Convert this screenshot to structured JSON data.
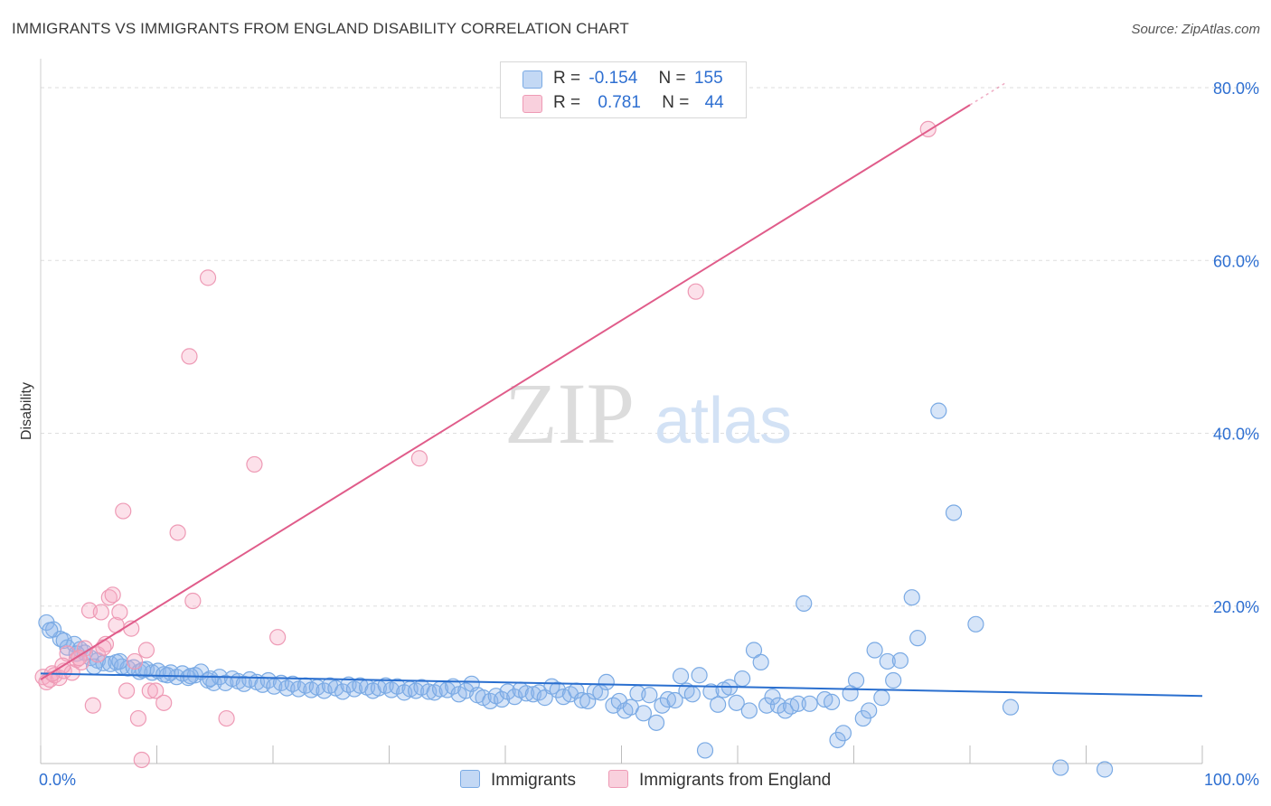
{
  "header": {
    "title": "IMMIGRANTS VS IMMIGRANTS FROM ENGLAND DISABILITY CORRELATION CHART",
    "source": "Source: ZipAtlas.com"
  },
  "watermark": {
    "zip": "ZIP",
    "atlas": "atlas"
  },
  "legend": {
    "rows": [
      {
        "r_label": "R =",
        "r_value": "-0.154",
        "n_label": "N =",
        "n_value": "155",
        "color": "#a9c8f0"
      },
      {
        "r_label": "R =",
        "r_value": "0.781",
        "n_label": "N =",
        "n_value": "44",
        "color": "#f5b8cb"
      }
    ]
  },
  "colors": {
    "blue_fill": "rgba(140,180,235,0.35)",
    "blue_stroke": "#7aaae4",
    "blue_line": "#2a6fcf",
    "pink_fill": "rgba(245,170,195,0.35)",
    "pink_stroke": "#ee9ab5",
    "pink_line": "#e05c8a",
    "axis_text": "#2e6fd1",
    "grid": "#dedede"
  },
  "chart_data": {
    "type": "scatter",
    "title": "IMMIGRANTS VS IMMIGRANTS FROM ENGLAND DISABILITY CORRELATION CHART",
    "xlabel": "",
    "ylabel": "Disability",
    "xlim": [
      0,
      100
    ],
    "ylim": [
      0,
      80
    ],
    "x_tick_labels": [
      "0.0%",
      "100.0%"
    ],
    "y_ticks": [
      20,
      40,
      60,
      80
    ],
    "y_tick_labels": [
      "20.0%",
      "40.0%",
      "60.0%",
      "80.0%"
    ],
    "series": [
      {
        "name": "Immigrants",
        "color": "#7aaae4",
        "trend": {
          "x0": 0,
          "y0": 12.2,
          "x1": 100,
          "y1": 9.6
        },
        "points": [
          [
            0.5,
            18.1
          ],
          [
            1.1,
            17.3
          ],
          [
            1.7,
            16.2
          ],
          [
            2.3,
            15.2
          ],
          [
            2.9,
            15.6
          ],
          [
            3.4,
            15.0
          ],
          [
            3.8,
            14.6
          ],
          [
            4.3,
            14.0
          ],
          [
            4.9,
            13.7
          ],
          [
            5.4,
            13.4
          ],
          [
            6.0,
            13.3
          ],
          [
            6.5,
            13.5
          ],
          [
            7.0,
            13.0
          ],
          [
            7.5,
            12.8
          ],
          [
            8.0,
            12.9
          ],
          [
            8.5,
            12.4
          ],
          [
            9.1,
            12.7
          ],
          [
            9.6,
            12.3
          ],
          [
            10.1,
            12.5
          ],
          [
            10.6,
            12.1
          ],
          [
            11.2,
            12.3
          ],
          [
            11.7,
            11.8
          ],
          [
            12.2,
            12.2
          ],
          [
            12.7,
            11.7
          ],
          [
            13.3,
            12.0
          ],
          [
            13.8,
            12.4
          ],
          [
            14.4,
            11.4
          ],
          [
            14.9,
            11.1
          ],
          [
            15.4,
            11.8
          ],
          [
            15.9,
            11.1
          ],
          [
            16.5,
            11.6
          ],
          [
            17.0,
            11.3
          ],
          [
            17.5,
            11.0
          ],
          [
            18.0,
            11.5
          ],
          [
            18.6,
            11.2
          ],
          [
            19.1,
            10.9
          ],
          [
            19.6,
            11.4
          ],
          [
            20.1,
            10.7
          ],
          [
            20.7,
            11.1
          ],
          [
            21.2,
            10.5
          ],
          [
            21.7,
            11.0
          ],
          [
            22.2,
            10.4
          ],
          [
            22.8,
            10.8
          ],
          [
            23.3,
            10.3
          ],
          [
            23.8,
            10.6
          ],
          [
            24.4,
            10.2
          ],
          [
            24.9,
            10.8
          ],
          [
            25.4,
            10.5
          ],
          [
            26.0,
            10.1
          ],
          [
            26.5,
            10.9
          ],
          [
            27.0,
            10.4
          ],
          [
            27.5,
            10.8
          ],
          [
            28.1,
            10.6
          ],
          [
            28.6,
            10.2
          ],
          [
            29.1,
            10.5
          ],
          [
            29.7,
            10.8
          ],
          [
            30.2,
            10.3
          ],
          [
            30.7,
            10.7
          ],
          [
            31.3,
            10.0
          ],
          [
            31.8,
            10.4
          ],
          [
            32.3,
            10.2
          ],
          [
            32.8,
            10.6
          ],
          [
            33.4,
            10.1
          ],
          [
            33.9,
            10.0
          ],
          [
            34.4,
            10.4
          ],
          [
            35.0,
            10.3
          ],
          [
            35.5,
            10.7
          ],
          [
            36.0,
            9.8
          ],
          [
            36.6,
            10.2
          ],
          [
            37.1,
            11.0
          ],
          [
            37.6,
            9.7
          ],
          [
            38.1,
            9.4
          ],
          [
            38.7,
            9.0
          ],
          [
            39.2,
            9.6
          ],
          [
            39.7,
            9.2
          ],
          [
            40.2,
            10.1
          ],
          [
            40.8,
            9.5
          ],
          [
            41.3,
            10.3
          ],
          [
            41.8,
            9.9
          ],
          [
            42.4,
            9.8
          ],
          [
            42.9,
            10.0
          ],
          [
            43.4,
            9.4
          ],
          [
            44.0,
            10.7
          ],
          [
            44.5,
            10.3
          ],
          [
            45.0,
            9.5
          ],
          [
            45.6,
            9.8
          ],
          [
            46.1,
            10.2
          ],
          [
            46.6,
            9.1
          ],
          [
            47.1,
            9.0
          ],
          [
            47.7,
            10.1
          ],
          [
            48.2,
            10.0
          ],
          [
            48.7,
            11.2
          ],
          [
            49.3,
            8.5
          ],
          [
            49.8,
            9.0
          ],
          [
            50.3,
            7.9
          ],
          [
            50.8,
            8.3
          ],
          [
            51.4,
            9.9
          ],
          [
            51.9,
            7.6
          ],
          [
            52.4,
            9.7
          ],
          [
            53.0,
            6.5
          ],
          [
            53.5,
            8.5
          ],
          [
            54.0,
            9.2
          ],
          [
            54.6,
            9.1
          ],
          [
            55.1,
            11.9
          ],
          [
            55.6,
            10.2
          ],
          [
            56.1,
            9.8
          ],
          [
            56.7,
            12.0
          ],
          [
            57.2,
            3.3
          ],
          [
            57.7,
            10.1
          ],
          [
            58.3,
            8.6
          ],
          [
            58.8,
            10.3
          ],
          [
            59.3,
            10.6
          ],
          [
            59.9,
            8.8
          ],
          [
            60.4,
            11.6
          ],
          [
            61.0,
            7.9
          ],
          [
            61.4,
            14.9
          ],
          [
            62.0,
            13.5
          ],
          [
            62.5,
            8.5
          ],
          [
            63.0,
            9.5
          ],
          [
            63.5,
            8.5
          ],
          [
            64.1,
            7.9
          ],
          [
            64.6,
            8.4
          ],
          [
            65.2,
            8.7
          ],
          [
            65.7,
            20.3
          ],
          [
            66.2,
            8.7
          ],
          [
            67.5,
            9.2
          ],
          [
            68.1,
            8.9
          ],
          [
            68.6,
            4.5
          ],
          [
            69.1,
            5.3
          ],
          [
            69.7,
            9.9
          ],
          [
            70.2,
            11.4
          ],
          [
            70.8,
            7.0
          ],
          [
            71.3,
            7.9
          ],
          [
            71.8,
            14.9
          ],
          [
            72.4,
            9.4
          ],
          [
            72.9,
            13.6
          ],
          [
            73.4,
            11.4
          ],
          [
            74.0,
            13.7
          ],
          [
            75.0,
            21.0
          ],
          [
            75.5,
            16.3
          ],
          [
            77.3,
            42.6
          ],
          [
            78.6,
            30.8
          ],
          [
            80.5,
            17.9
          ],
          [
            83.5,
            8.3
          ],
          [
            87.8,
            1.3
          ],
          [
            91.6,
            1.1
          ],
          [
            0.8,
            17.2
          ],
          [
            2.0,
            16.0
          ],
          [
            3.1,
            14.5
          ],
          [
            4.6,
            13.0
          ],
          [
            6.8,
            13.6
          ],
          [
            8.8,
            12.6
          ],
          [
            10.9,
            12.0
          ],
          [
            12.9,
            11.9
          ],
          [
            14.6,
            11.6
          ]
        ]
      },
      {
        "name": "Immigrants from England",
        "color": "#ee9ab5",
        "trend": {
          "x0": 0,
          "y0": 11.5,
          "x1": 80,
          "y1": 78.0
        },
        "points": [
          [
            0.2,
            11.8
          ],
          [
            0.5,
            11.2
          ],
          [
            0.8,
            11.5
          ],
          [
            1.2,
            12.0
          ],
          [
            1.6,
            11.7
          ],
          [
            2.0,
            12.5
          ],
          [
            2.3,
            14.5
          ],
          [
            2.7,
            12.3
          ],
          [
            3.1,
            13.8
          ],
          [
            3.5,
            13.5
          ],
          [
            3.8,
            15.1
          ],
          [
            4.2,
            19.5
          ],
          [
            4.5,
            8.5
          ],
          [
            4.9,
            14.4
          ],
          [
            5.2,
            19.3
          ],
          [
            5.6,
            15.6
          ],
          [
            5.9,
            21.0
          ],
          [
            6.2,
            21.3
          ],
          [
            6.5,
            17.8
          ],
          [
            6.8,
            19.3
          ],
          [
            7.1,
            31.0
          ],
          [
            7.4,
            10.2
          ],
          [
            7.8,
            17.4
          ],
          [
            8.1,
            13.6
          ],
          [
            8.4,
            7.0
          ],
          [
            8.7,
            2.2
          ],
          [
            9.1,
            14.9
          ],
          [
            9.4,
            10.2
          ],
          [
            9.9,
            10.2
          ],
          [
            10.6,
            8.8
          ],
          [
            11.8,
            28.5
          ],
          [
            12.8,
            48.9
          ],
          [
            13.1,
            20.6
          ],
          [
            14.4,
            58.0
          ],
          [
            16.0,
            7.0
          ],
          [
            18.4,
            36.4
          ],
          [
            20.4,
            16.4
          ],
          [
            32.6,
            37.1
          ],
          [
            56.4,
            56.4
          ],
          [
            76.4,
            75.2
          ],
          [
            1.0,
            12.2
          ],
          [
            1.9,
            13.1
          ],
          [
            3.3,
            14.0
          ],
          [
            5.4,
            15.2
          ]
        ]
      }
    ]
  }
}
